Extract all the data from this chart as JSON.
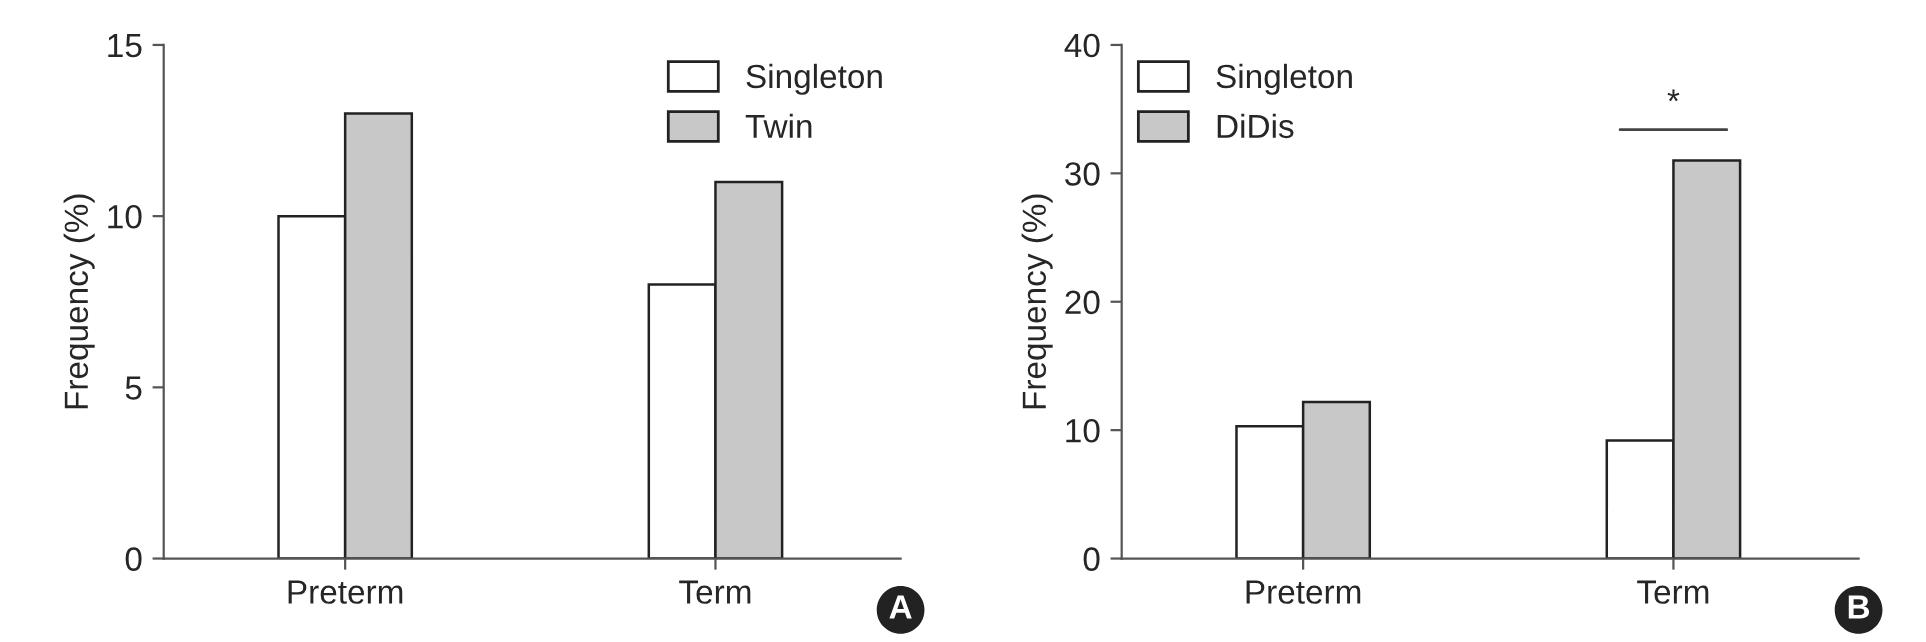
{
  "chart_data": [
    {
      "type": "bar",
      "categories": [
        "Preterm",
        "Term"
      ],
      "ylabel": "Frequency (%)",
      "ylim": [
        0,
        15
      ],
      "yticks": [
        0,
        5,
        10,
        15
      ],
      "grid": false,
      "legend": "top right",
      "series": [
        {
          "name": "Singleton",
          "color": "#ffffff",
          "values": [
            10,
            8
          ]
        },
        {
          "name": "Twin",
          "color": "#c8c8c8",
          "values": [
            13,
            11
          ]
        }
      ],
      "annotations": [
        "A"
      ]
    },
    {
      "type": "bar",
      "categories": [
        "Preterm",
        "Term"
      ],
      "ylabel": "Frequency (%)",
      "ylim": [
        0,
        40
      ],
      "yticks": [
        0,
        10,
        20,
        30,
        40
      ],
      "grid": false,
      "legend": "top left",
      "series": [
        {
          "name": "Singleton",
          "color": "#ffffff",
          "values": [
            10.3,
            9.2
          ]
        },
        {
          "name": "DiDis",
          "color": "#c8c8c8",
          "values": [
            12.2,
            31.0
          ]
        }
      ],
      "annotations": [
        "*",
        "B"
      ]
    }
  ]
}
